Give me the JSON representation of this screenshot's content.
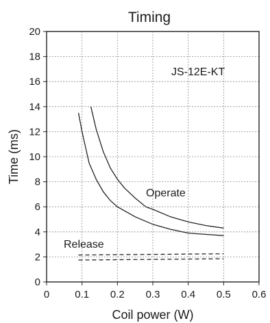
{
  "chart_data": {
    "type": "line",
    "title": "Timing",
    "xlabel": "Coil power (W)",
    "ylabel": "Time (ms)",
    "xlim": [
      0,
      0.6
    ],
    "ylim": [
      0,
      20
    ],
    "x_ticks": [
      "0",
      "0.1",
      "0.2",
      "0.3",
      "0.4",
      "0.5",
      "0.6"
    ],
    "y_ticks": [
      "0",
      "2",
      "4",
      "6",
      "8",
      "10",
      "12",
      "14",
      "16",
      "18",
      "20"
    ],
    "grid": true,
    "annotations": {
      "model": "JS-12E-KT",
      "operate": "Operate",
      "release": "Release"
    },
    "series": [
      {
        "name": "Operate",
        "style": "solid",
        "x": [
          0.125,
          0.14,
          0.16,
          0.18,
          0.2,
          0.22,
          0.25,
          0.28,
          0.3,
          0.35,
          0.4,
          0.45,
          0.5
        ],
        "y": [
          14.0,
          12.2,
          10.4,
          9.1,
          8.2,
          7.5,
          6.7,
          6.0,
          5.8,
          5.2,
          4.8,
          4.5,
          4.3
        ]
      },
      {
        "name": "Operate",
        "style": "solid",
        "x": [
          0.09,
          0.1,
          0.12,
          0.14,
          0.16,
          0.18,
          0.2,
          0.25,
          0.3,
          0.35,
          0.4,
          0.45,
          0.5
        ],
        "y": [
          13.5,
          12.0,
          9.5,
          8.2,
          7.2,
          6.5,
          6.0,
          5.2,
          4.6,
          4.2,
          3.9,
          3.8,
          3.7
        ]
      },
      {
        "name": "Release",
        "style": "dashed",
        "x": [
          0.09,
          0.5
        ],
        "y": [
          2.15,
          2.25
        ]
      },
      {
        "name": "Release",
        "style": "dashed",
        "x": [
          0.09,
          0.5
        ],
        "y": [
          1.75,
          1.85
        ]
      }
    ]
  }
}
